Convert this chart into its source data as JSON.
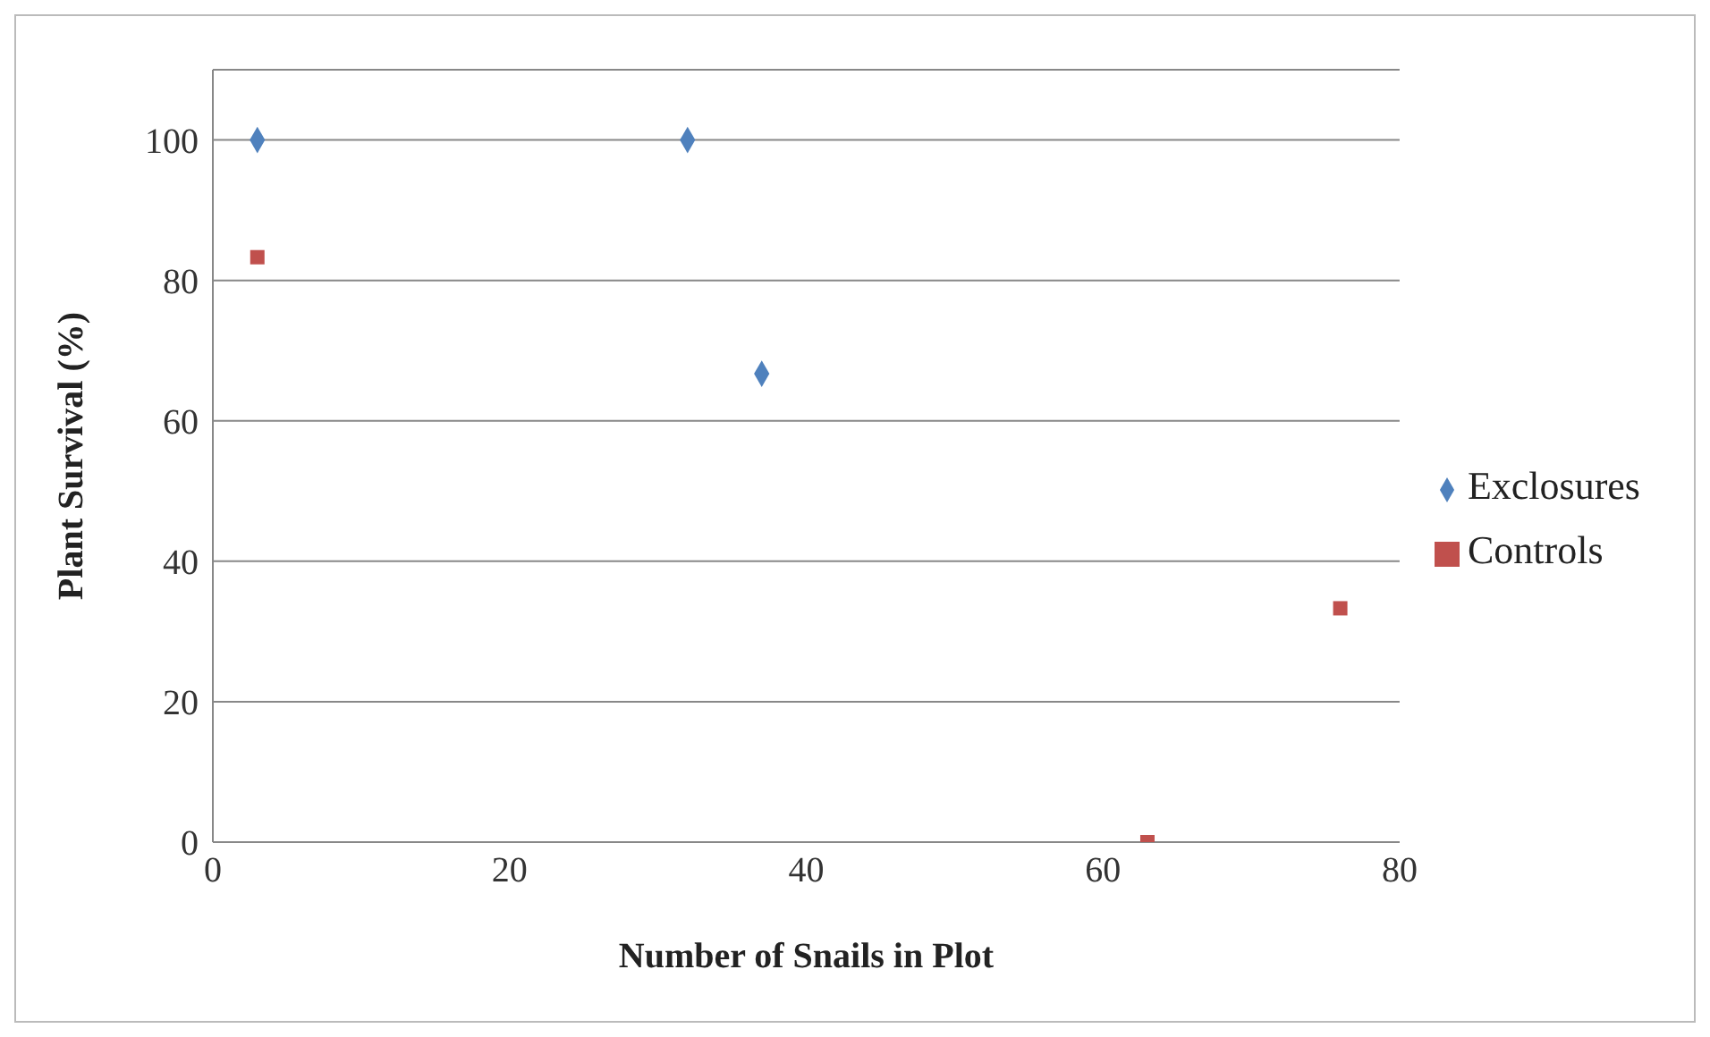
{
  "chart_data": {
    "type": "scatter",
    "xlabel": "Number of Snails in Plot",
    "ylabel": "Plant Survival (%)",
    "xlim": [
      0,
      80
    ],
    "xticks": [
      0,
      20,
      40,
      60,
      80
    ],
    "ylim": [
      0,
      110
    ],
    "yticks": [
      0,
      20,
      40,
      60,
      80,
      100
    ],
    "grid": "y",
    "legend": "right",
    "series": [
      {
        "name": "Exclosures",
        "color": "#4f81bd",
        "marker": "diamond",
        "x": [
          3,
          32,
          37
        ],
        "values": [
          100,
          100,
          66.7
        ]
      },
      {
        "name": "Controls",
        "color": "#c0504d",
        "marker": "square",
        "x": [
          3,
          63,
          76
        ],
        "values": [
          83.3,
          0,
          33.3
        ]
      }
    ]
  }
}
